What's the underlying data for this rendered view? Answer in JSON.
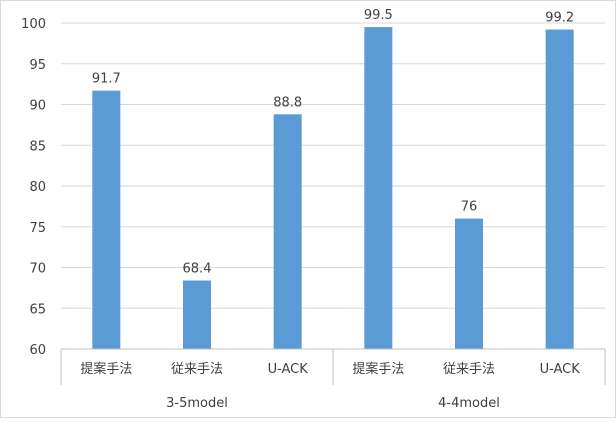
{
  "chart_data": {
    "type": "bar",
    "title": "",
    "xlabel": "",
    "ylabel": "",
    "ylim": [
      60,
      100
    ],
    "yticks": [
      60,
      65,
      70,
      75,
      80,
      85,
      90,
      95,
      100
    ],
    "grid": true,
    "legend": "none",
    "bar_color": "#5b9bd5",
    "groups": [
      {
        "name": "3-5model",
        "categories": [
          "提案手法",
          "従来手法",
          "U-ACK"
        ],
        "values": [
          91.7,
          68.4,
          88.8
        ]
      },
      {
        "name": "4-4model",
        "categories": [
          "提案手法",
          "従来手法",
          "U-ACK"
        ],
        "values": [
          99.5,
          76,
          99.2
        ]
      }
    ]
  }
}
